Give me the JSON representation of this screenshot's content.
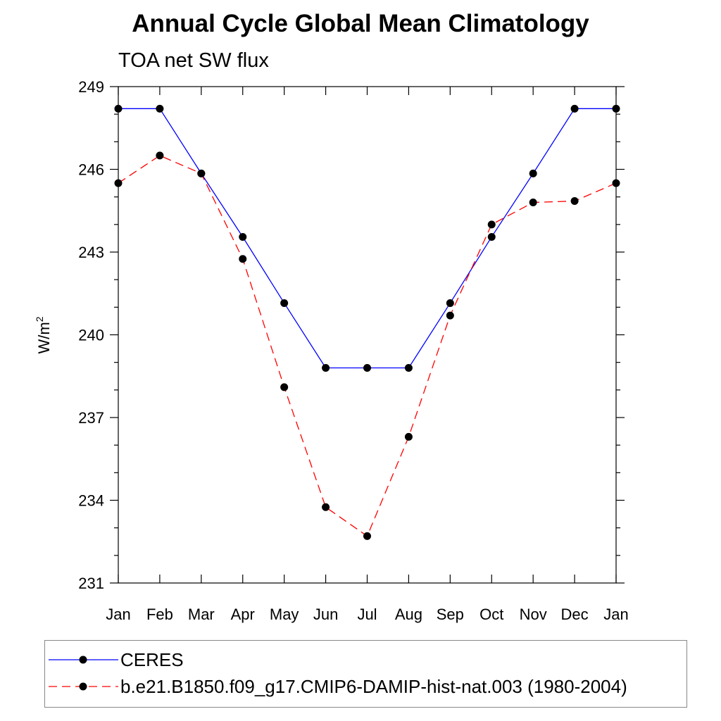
{
  "chart_data": {
    "type": "line",
    "title": "Annual Cycle Global Mean Climatology",
    "subtitle": "TOA net SW flux",
    "xlabel": "",
    "ylabel": "W/m",
    "ylabel_superscript": "2",
    "categories": [
      "Jan",
      "Feb",
      "Mar",
      "Apr",
      "May",
      "Jun",
      "Jul",
      "Aug",
      "Sep",
      "Oct",
      "Nov",
      "Dec",
      "Jan"
    ],
    "ylim": [
      231,
      249
    ],
    "yticks": [
      231,
      234,
      237,
      240,
      243,
      246,
      249
    ],
    "ytick_labels": [
      "231",
      "234",
      "237",
      "240",
      "243",
      "246",
      "249"
    ],
    "grid": false,
    "legend_position": "bottom",
    "series": [
      {
        "name": "CERES",
        "color": "#0000ff",
        "line_style": "solid",
        "marker": "filled-circle",
        "values": [
          248.2,
          248.2,
          245.85,
          243.55,
          241.15,
          238.8,
          238.8,
          238.8,
          241.15,
          243.55,
          245.85,
          248.2,
          248.2
        ]
      },
      {
        "name": "b.e21.B1850.f09_g17.CMIP6-DAMIP-hist-nat.003 (1980-2004)",
        "color": "#ff0000",
        "line_style": "dashed",
        "marker": "filled-circle",
        "values": [
          245.5,
          246.5,
          245.85,
          242.75,
          238.1,
          233.75,
          232.7,
          236.3,
          240.7,
          244.0,
          244.8,
          244.85,
          245.5
        ]
      }
    ]
  }
}
